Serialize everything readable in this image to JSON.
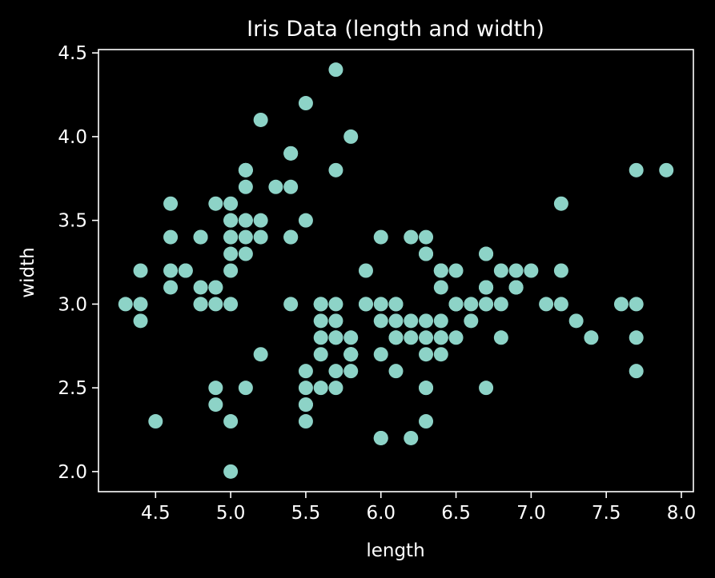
{
  "theme": {
    "background": "#000000",
    "foreground": "#ffffff",
    "marker_color": "#8dd3c7"
  },
  "chart_data": {
    "type": "scatter",
    "title": "Iris Data (length and width)",
    "xlabel": "length",
    "ylabel": "width",
    "xlim": [
      4.12,
      8.08
    ],
    "ylim": [
      1.88,
      4.52
    ],
    "xticks": [
      4.5,
      5.0,
      5.5,
      6.0,
      6.5,
      7.0,
      7.5,
      8.0
    ],
    "xtick_labels": [
      "4.5",
      "5.0",
      "5.5",
      "6.0",
      "6.5",
      "7.0",
      "7.5",
      "8.0"
    ],
    "yticks": [
      2.0,
      2.5,
      3.0,
      3.5,
      4.0,
      4.5
    ],
    "ytick_labels": [
      "2.0",
      "2.5",
      "3.0",
      "3.5",
      "4.0",
      "4.5"
    ],
    "grid": false,
    "points": [
      [
        5.1,
        3.5
      ],
      [
        4.9,
        3.0
      ],
      [
        4.7,
        3.2
      ],
      [
        4.6,
        3.1
      ],
      [
        5.0,
        3.6
      ],
      [
        5.4,
        3.9
      ],
      [
        4.6,
        3.4
      ],
      [
        5.0,
        3.4
      ],
      [
        4.4,
        2.9
      ],
      [
        4.9,
        3.1
      ],
      [
        5.4,
        3.7
      ],
      [
        4.8,
        3.4
      ],
      [
        4.8,
        3.0
      ],
      [
        4.3,
        3.0
      ],
      [
        5.8,
        4.0
      ],
      [
        5.7,
        4.4
      ],
      [
        5.4,
        3.9
      ],
      [
        5.1,
        3.5
      ],
      [
        5.7,
        3.8
      ],
      [
        5.1,
        3.8
      ],
      [
        5.4,
        3.4
      ],
      [
        5.1,
        3.7
      ],
      [
        4.6,
        3.6
      ],
      [
        5.1,
        3.3
      ],
      [
        4.8,
        3.4
      ],
      [
        5.0,
        3.0
      ],
      [
        5.0,
        3.4
      ],
      [
        5.2,
        3.5
      ],
      [
        5.2,
        3.4
      ],
      [
        4.7,
        3.2
      ],
      [
        4.8,
        3.1
      ],
      [
        5.4,
        3.4
      ],
      [
        5.2,
        4.1
      ],
      [
        5.5,
        4.2
      ],
      [
        4.9,
        3.1
      ],
      [
        5.0,
        3.2
      ],
      [
        5.5,
        3.5
      ],
      [
        4.9,
        3.6
      ],
      [
        4.4,
        3.0
      ],
      [
        5.1,
        3.4
      ],
      [
        5.0,
        3.5
      ],
      [
        4.5,
        2.3
      ],
      [
        4.4,
        3.2
      ],
      [
        5.0,
        3.5
      ],
      [
        5.1,
        3.8
      ],
      [
        4.8,
        3.0
      ],
      [
        5.1,
        3.8
      ],
      [
        4.6,
        3.2
      ],
      [
        5.3,
        3.7
      ],
      [
        5.0,
        3.3
      ],
      [
        7.0,
        3.2
      ],
      [
        6.4,
        3.2
      ],
      [
        6.9,
        3.1
      ],
      [
        5.5,
        2.3
      ],
      [
        6.5,
        2.8
      ],
      [
        5.7,
        2.8
      ],
      [
        6.3,
        3.3
      ],
      [
        4.9,
        2.4
      ],
      [
        6.6,
        2.9
      ],
      [
        5.2,
        2.7
      ],
      [
        5.0,
        2.0
      ],
      [
        5.9,
        3.0
      ],
      [
        6.0,
        2.2
      ],
      [
        6.1,
        2.9
      ],
      [
        5.6,
        2.9
      ],
      [
        6.7,
        3.1
      ],
      [
        5.6,
        3.0
      ],
      [
        5.8,
        2.7
      ],
      [
        6.2,
        2.2
      ],
      [
        5.6,
        2.5
      ],
      [
        5.9,
        3.2
      ],
      [
        6.1,
        2.8
      ],
      [
        6.3,
        2.5
      ],
      [
        6.1,
        2.8
      ],
      [
        6.4,
        2.9
      ],
      [
        6.6,
        3.0
      ],
      [
        6.8,
        2.8
      ],
      [
        6.7,
        3.0
      ],
      [
        6.0,
        2.9
      ],
      [
        5.7,
        2.6
      ],
      [
        5.5,
        2.4
      ],
      [
        5.5,
        2.4
      ],
      [
        5.8,
        2.7
      ],
      [
        6.0,
        2.7
      ],
      [
        5.4,
        3.0
      ],
      [
        6.0,
        3.4
      ],
      [
        6.7,
        3.1
      ],
      [
        6.3,
        2.3
      ],
      [
        5.6,
        3.0
      ],
      [
        5.5,
        2.5
      ],
      [
        5.5,
        2.6
      ],
      [
        6.1,
        3.0
      ],
      [
        5.8,
        2.6
      ],
      [
        5.0,
        2.3
      ],
      [
        5.6,
        2.7
      ],
      [
        5.7,
        3.0
      ],
      [
        5.7,
        2.9
      ],
      [
        6.2,
        2.9
      ],
      [
        5.1,
        2.5
      ],
      [
        5.7,
        2.8
      ],
      [
        6.3,
        3.3
      ],
      [
        5.8,
        2.7
      ],
      [
        7.1,
        3.0
      ],
      [
        6.3,
        2.9
      ],
      [
        6.5,
        3.0
      ],
      [
        7.6,
        3.0
      ],
      [
        4.9,
        2.5
      ],
      [
        7.3,
        2.9
      ],
      [
        6.7,
        2.5
      ],
      [
        7.2,
        3.6
      ],
      [
        6.5,
        3.2
      ],
      [
        6.4,
        2.7
      ],
      [
        6.8,
        3.0
      ],
      [
        5.7,
        2.5
      ],
      [
        5.8,
        2.8
      ],
      [
        6.4,
        3.2
      ],
      [
        6.5,
        3.0
      ],
      [
        7.7,
        3.8
      ],
      [
        7.7,
        2.6
      ],
      [
        6.0,
        2.2
      ],
      [
        6.9,
        3.2
      ],
      [
        5.6,
        2.8
      ],
      [
        7.7,
        2.8
      ],
      [
        6.3,
        2.7
      ],
      [
        6.7,
        3.3
      ],
      [
        7.2,
        3.2
      ],
      [
        6.2,
        2.8
      ],
      [
        6.1,
        3.0
      ],
      [
        6.4,
        2.8
      ],
      [
        7.2,
        3.0
      ],
      [
        7.4,
        2.8
      ],
      [
        7.9,
        3.8
      ],
      [
        6.4,
        2.8
      ],
      [
        6.3,
        2.8
      ],
      [
        6.1,
        2.6
      ],
      [
        7.7,
        3.0
      ],
      [
        6.3,
        3.4
      ],
      [
        6.4,
        3.1
      ],
      [
        6.0,
        3.0
      ],
      [
        6.9,
        3.1
      ],
      [
        6.7,
        3.1
      ],
      [
        6.9,
        3.1
      ],
      [
        5.8,
        2.7
      ],
      [
        6.8,
        3.2
      ],
      [
        6.7,
        3.3
      ],
      [
        6.7,
        3.0
      ],
      [
        6.3,
        2.5
      ],
      [
        6.5,
        3.0
      ],
      [
        6.2,
        3.4
      ],
      [
        5.9,
        3.0
      ]
    ]
  }
}
